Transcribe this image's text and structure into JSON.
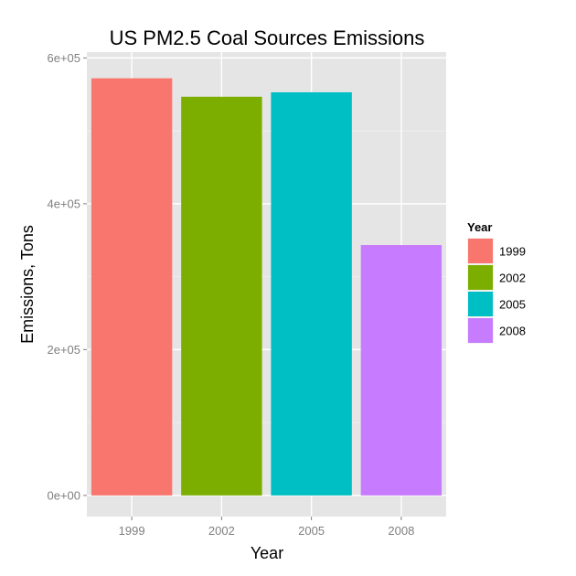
{
  "chart_data": {
    "type": "bar",
    "title": "US PM2.5 Coal Sources Emissions",
    "xlabel": "Year",
    "ylabel": "Emissions, Tons",
    "categories": [
      "1999",
      "2002",
      "2005",
      "2008"
    ],
    "values": [
      572100,
      546800,
      552900,
      343400
    ],
    "ylim": [
      -29000,
      608000
    ],
    "yticks": [
      0,
      200000,
      400000,
      600000
    ],
    "ytick_labels": [
      "0e+00",
      "2e+05",
      "4e+05",
      "6e+05"
    ],
    "grid": true,
    "legend": {
      "title": "Year",
      "position": "right",
      "entries": [
        "1999",
        "2002",
        "2005",
        "2008"
      ]
    },
    "colors": [
      "#F8766D",
      "#7CAE00",
      "#00BFC4",
      "#C77CFF"
    ],
    "panel_background": "#E5E5E5",
    "grid_color": "#FFFFFF",
    "tick_label_color": "#7F7F7F"
  }
}
